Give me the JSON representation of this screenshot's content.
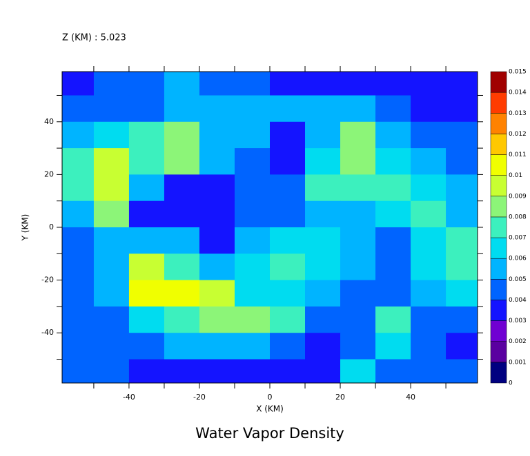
{
  "chart_data": {
    "type": "contour",
    "title": "Water Vapor Density",
    "subtitle": "Z (KM) : 5.023",
    "x_label": "X (KM)",
    "y_label": "Y (KM)",
    "xlim": [
      -59,
      59
    ],
    "ylim": [
      -59,
      59
    ],
    "xticks": [
      -40,
      -20,
      0,
      20,
      40
    ],
    "yticks": [
      -40,
      -20,
      0,
      20,
      40
    ],
    "x_minor_ticks": [
      -50,
      -30,
      -10,
      10,
      30,
      50
    ],
    "y_minor_ticks": [
      -50,
      -30,
      -10,
      10,
      30,
      50
    ],
    "levels": [
      0,
      0.001,
      0.002,
      0.003,
      0.004,
      0.005,
      0.006,
      0.007,
      0.008,
      0.009,
      0.01,
      0.011,
      0.012,
      0.013,
      0.014,
      0.015
    ],
    "colors": [
      "#000080",
      "#5a00a0",
      "#7000d2",
      "#1414ff",
      "#0064ff",
      "#00b4ff",
      "#00dcf0",
      "#3cf0be",
      "#8cf578",
      "#c8ff32",
      "#f0ff00",
      "#ffc800",
      "#ff8200",
      "#ff3c00",
      "#a00000"
    ],
    "x": [
      -55,
      -45,
      -35,
      -25,
      -15,
      -5,
      5,
      15,
      25,
      35,
      45,
      55
    ],
    "y": [
      55,
      45,
      35,
      25,
      15,
      5,
      -5,
      -15,
      -25,
      -35,
      -45,
      -55
    ],
    "z": [
      [
        0.0035,
        0.0045,
        0.0045,
        0.0055,
        0.0045,
        0.0045,
        0.0035,
        0.0035,
        0.0035,
        0.0035,
        0.0035,
        0.0035
      ],
      [
        0.0045,
        0.0045,
        0.0045,
        0.0055,
        0.0055,
        0.0055,
        0.0055,
        0.0055,
        0.0055,
        0.0045,
        0.0035,
        0.0035
      ],
      [
        0.0055,
        0.0065,
        0.0075,
        0.0085,
        0.0055,
        0.0055,
        0.0035,
        0.0055,
        0.0085,
        0.0055,
        0.0045,
        0.0045
      ],
      [
        0.0075,
        0.0095,
        0.0075,
        0.0085,
        0.0055,
        0.0045,
        0.0035,
        0.0065,
        0.0085,
        0.0065,
        0.0055,
        0.0045
      ],
      [
        0.0075,
        0.0095,
        0.0055,
        0.0035,
        0.0035,
        0.0045,
        0.0045,
        0.0075,
        0.0075,
        0.0075,
        0.0065,
        0.0055
      ],
      [
        0.0055,
        0.0085,
        0.0035,
        0.0035,
        0.0035,
        0.0045,
        0.0045,
        0.0055,
        0.0055,
        0.0065,
        0.0075,
        0.0055
      ],
      [
        0.0045,
        0.0055,
        0.0055,
        0.0055,
        0.0035,
        0.0055,
        0.0065,
        0.0065,
        0.0055,
        0.0045,
        0.0065,
        0.0075
      ],
      [
        0.0045,
        0.0055,
        0.0095,
        0.0075,
        0.0055,
        0.0065,
        0.0075,
        0.0065,
        0.0055,
        0.0045,
        0.0065,
        0.0075
      ],
      [
        0.0045,
        0.0055,
        0.0105,
        0.0105,
        0.0095,
        0.0065,
        0.0065,
        0.0055,
        0.0045,
        0.0045,
        0.0055,
        0.0065
      ],
      [
        0.0045,
        0.0045,
        0.0065,
        0.0075,
        0.0085,
        0.0085,
        0.0075,
        0.0045,
        0.0045,
        0.0075,
        0.0045,
        0.0045
      ],
      [
        0.0045,
        0.0045,
        0.0045,
        0.0055,
        0.0055,
        0.0055,
        0.0045,
        0.0035,
        0.0045,
        0.0065,
        0.0045,
        0.0035
      ],
      [
        0.0045,
        0.0045,
        0.0035,
        0.0035,
        0.0035,
        0.0035,
        0.0035,
        0.0035,
        0.0065,
        0.0045,
        0.0045,
        0.0045
      ]
    ]
  }
}
